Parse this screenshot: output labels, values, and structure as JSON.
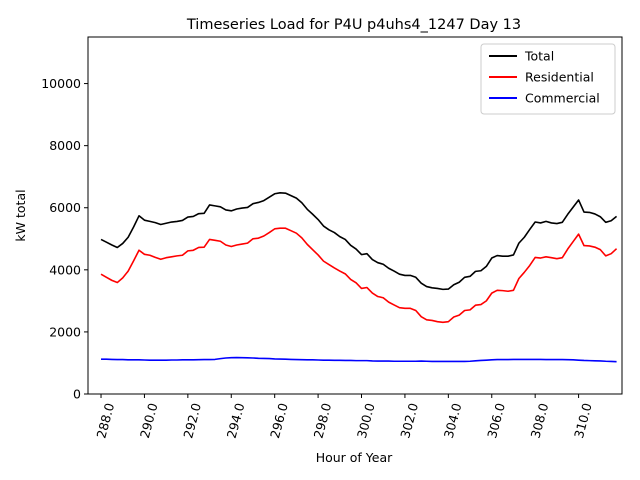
{
  "chart_data": {
    "type": "line",
    "title": "Timeseries Load for P4U p4uhs4_1247  Day 13",
    "xlabel": "Hour of Year",
    "ylabel": "kW total",
    "xlim": [
      287.4,
      312.0
    ],
    "ylim": [
      0,
      11500
    ],
    "xticks": [
      288.0,
      290.0,
      292.0,
      294.0,
      296.0,
      298.0,
      300.0,
      302.0,
      304.0,
      306.0,
      308.0,
      310.0
    ],
    "xtick_labels": [
      "288.0",
      "290.0",
      "292.0",
      "294.0",
      "296.0",
      "298.0",
      "300.0",
      "302.0",
      "304.0",
      "306.0",
      "308.0",
      "310.0"
    ],
    "yticks": [
      0,
      2000,
      4000,
      6000,
      8000,
      10000
    ],
    "ytick_labels": [
      "0",
      "2000",
      "4000",
      "6000",
      "8000",
      "10000"
    ],
    "legend_position": "top-right",
    "x": [
      288.0,
      288.25,
      288.5,
      288.75,
      289.0,
      289.25,
      289.5,
      289.75,
      290.0,
      290.25,
      290.5,
      290.75,
      291.0,
      291.25,
      291.5,
      291.75,
      292.0,
      292.25,
      292.5,
      292.75,
      293.0,
      293.25,
      293.5,
      293.75,
      294.0,
      294.25,
      294.5,
      294.75,
      295.0,
      295.25,
      295.5,
      295.75,
      296.0,
      296.25,
      296.5,
      296.75,
      297.0,
      297.25,
      297.5,
      297.75,
      298.0,
      298.25,
      298.5,
      298.75,
      299.0,
      299.25,
      299.5,
      299.75,
      300.0,
      300.25,
      300.5,
      300.75,
      301.0,
      301.25,
      301.5,
      301.75,
      302.0,
      302.25,
      302.5,
      302.75,
      303.0,
      303.25,
      303.5,
      303.75,
      304.0,
      304.25,
      304.5,
      304.75,
      305.0,
      305.25,
      305.5,
      305.75,
      306.0,
      306.25,
      306.5,
      306.75,
      307.0,
      307.25,
      307.5,
      307.75,
      308.0,
      308.25,
      308.5,
      308.75,
      309.0,
      309.25,
      309.5,
      309.75,
      310.0,
      310.25,
      310.5,
      310.75,
      311.0,
      311.25,
      311.5,
      311.75
    ],
    "series": [
      {
        "name": "Total",
        "color": "#000000",
        "values": [
          4980,
          4890,
          4800,
          4720,
          4850,
          5050,
          5380,
          5740,
          5600,
          5560,
          5520,
          5460,
          5500,
          5540,
          5560,
          5590,
          5700,
          5720,
          5810,
          5820,
          6090,
          6060,
          6030,
          5930,
          5900,
          5960,
          5990,
          6010,
          6130,
          6170,
          6230,
          6340,
          6450,
          6480,
          6470,
          6390,
          6310,
          6160,
          5950,
          5790,
          5620,
          5410,
          5290,
          5200,
          5070,
          4980,
          4790,
          4670,
          4490,
          4520,
          4330,
          4230,
          4180,
          4050,
          3960,
          3860,
          3820,
          3820,
          3760,
          3570,
          3460,
          3420,
          3400,
          3370,
          3380,
          3520,
          3600,
          3760,
          3790,
          3950,
          3970,
          4110,
          4380,
          4460,
          4440,
          4440,
          4480,
          4860,
          5050,
          5300,
          5540,
          5510,
          5560,
          5510,
          5490,
          5530,
          5790,
          6020,
          6250,
          5860,
          5850,
          5800,
          5710,
          5530,
          5580,
          5720
        ]
      },
      {
        "name": "Residential",
        "color": "#ff0000",
        "values": [
          3860,
          3760,
          3660,
          3590,
          3740,
          3960,
          4290,
          4630,
          4500,
          4470,
          4400,
          4340,
          4390,
          4420,
          4450,
          4470,
          4610,
          4630,
          4720,
          4730,
          4980,
          4950,
          4920,
          4800,
          4750,
          4800,
          4830,
          4860,
          5000,
          5020,
          5090,
          5200,
          5320,
          5340,
          5340,
          5260,
          5180,
          5030,
          4820,
          4650,
          4480,
          4280,
          4170,
          4060,
          3960,
          3870,
          3690,
          3580,
          3400,
          3430,
          3250,
          3140,
          3100,
          2960,
          2870,
          2780,
          2760,
          2760,
          2690,
          2490,
          2390,
          2370,
          2330,
          2310,
          2330,
          2480,
          2540,
          2690,
          2710,
          2860,
          2880,
          3000,
          3250,
          3340,
          3330,
          3310,
          3340,
          3720,
          3920,
          4140,
          4400,
          4380,
          4420,
          4390,
          4360,
          4390,
          4670,
          4910,
          5150,
          4780,
          4770,
          4730,
          4650,
          4450,
          4520,
          4680
        ]
      },
      {
        "name": "Commercial",
        "color": "#0000ff",
        "values": [
          1120,
          1120,
          1115,
          1110,
          1110,
          1100,
          1100,
          1100,
          1095,
          1090,
          1090,
          1090,
          1090,
          1095,
          1095,
          1100,
          1100,
          1100,
          1105,
          1110,
          1110,
          1115,
          1140,
          1160,
          1170,
          1175,
          1170,
          1165,
          1160,
          1150,
          1145,
          1140,
          1130,
          1125,
          1120,
          1115,
          1110,
          1105,
          1100,
          1100,
          1095,
          1090,
          1090,
          1085,
          1085,
          1080,
          1080,
          1075,
          1075,
          1075,
          1065,
          1060,
          1060,
          1060,
          1055,
          1055,
          1055,
          1055,
          1055,
          1060,
          1055,
          1050,
          1050,
          1050,
          1050,
          1050,
          1050,
          1050,
          1055,
          1070,
          1080,
          1090,
          1100,
          1110,
          1110,
          1110,
          1115,
          1115,
          1115,
          1115,
          1115,
          1115,
          1110,
          1110,
          1110,
          1110,
          1105,
          1100,
          1090,
          1080,
          1075,
          1070,
          1065,
          1055,
          1050,
          1040
        ]
      }
    ]
  }
}
